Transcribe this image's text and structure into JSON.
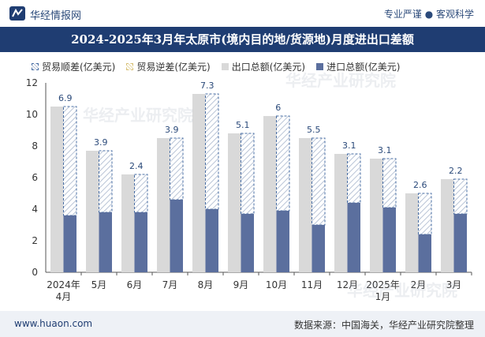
{
  "header": {
    "site_name": "华经情报网",
    "slogan": "专业严谨 ● 客观科学"
  },
  "watermark": "华经产业研究院",
  "footer": {
    "website": "www.huaon.com",
    "source": "数据来源：中国海关，华经产业研究院整理"
  },
  "colors": {
    "title_bg": "#1f3d72",
    "export": "#d9d9d9",
    "import": "#5b6f9e",
    "surplus_border": "#4a6fa5",
    "label": "#2b4a7a"
  },
  "chart_data": {
    "type": "bar",
    "title": "2024-2025年3月年太原市(境内目的地/货源地)月度进出口差额",
    "legend": [
      "贸易顺差(亿美元)",
      "贸易逆差(亿美元)",
      "出口总额(亿美元)",
      "进口总额(亿美元)"
    ],
    "categories": [
      "2024年\n4月",
      "5月",
      "6月",
      "7月",
      "8月",
      "9月",
      "10月",
      "11月",
      "12月",
      "2025年\n1月",
      "2月",
      "3月"
    ],
    "ylim": [
      0,
      12
    ],
    "yticks": [
      0,
      2,
      4,
      6,
      8,
      10,
      12
    ],
    "series": [
      {
        "name": "出口总额(亿美元)",
        "values": [
          10.5,
          7.7,
          6.2,
          8.5,
          11.3,
          8.8,
          9.9,
          8.5,
          7.5,
          7.2,
          5.0,
          5.9
        ]
      },
      {
        "name": "进口总额(亿美元)",
        "values": [
          3.6,
          3.8,
          3.8,
          4.6,
          4.0,
          3.7,
          3.9,
          3.0,
          4.4,
          4.1,
          2.4,
          3.7
        ]
      },
      {
        "name": "贸易顺差(亿美元)",
        "values": [
          6.9,
          3.9,
          2.4,
          3.9,
          7.3,
          5.1,
          6,
          5.5,
          3.1,
          3.1,
          2.6,
          2.2
        ]
      }
    ]
  }
}
